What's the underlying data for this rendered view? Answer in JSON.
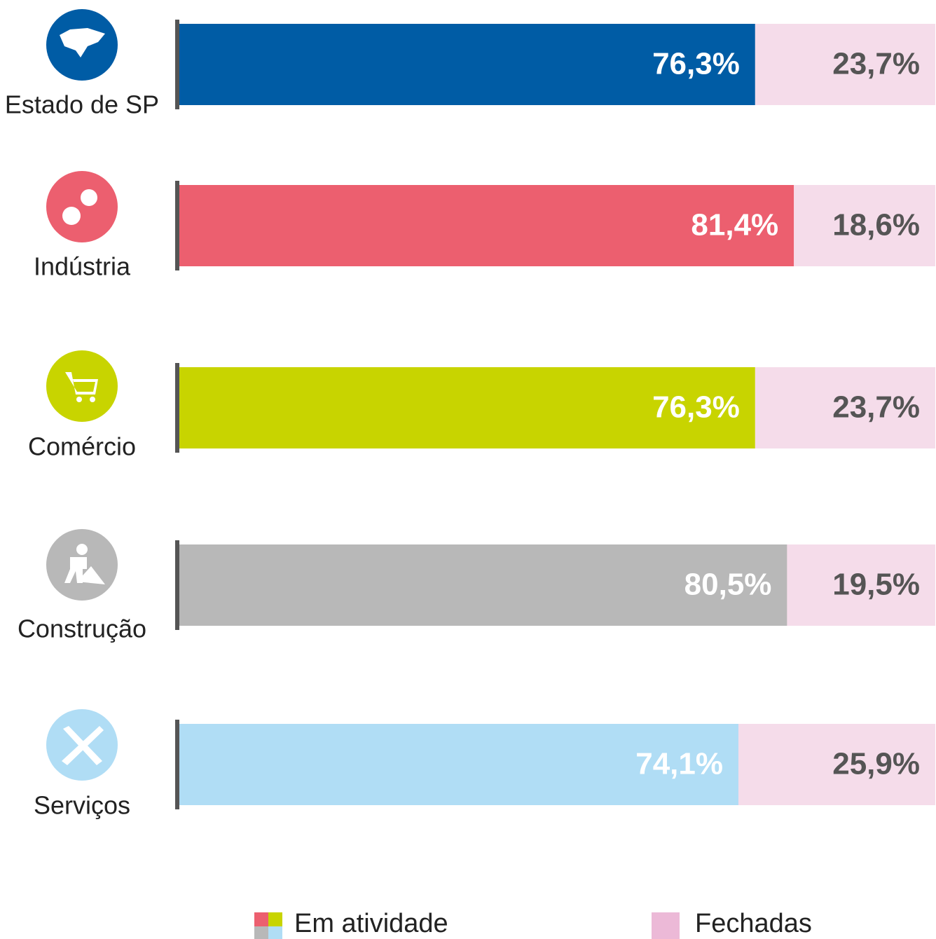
{
  "chart_data": {
    "type": "stacked-hbar",
    "categories": [
      "Estado de SP",
      "Indústria",
      "Comércio",
      "Construção",
      "Serviços"
    ],
    "series": [
      {
        "name": "Em atividade",
        "colors": [
          "#005ca5",
          "#ec5f6f",
          "#c8d400",
          "#b8b8b8",
          "#b0ddf5"
        ],
        "values": [
          76.3,
          81.4,
          76.3,
          80.5,
          74.1
        ],
        "value_labels": [
          "76,3%",
          "81,4%",
          "76,3%",
          "80,5%",
          "74,1%"
        ]
      },
      {
        "name": "Fechadas",
        "color": "#f5dcea",
        "legend_color": "#ecb9d7",
        "values": [
          23.7,
          18.6,
          23.7,
          19.5,
          25.9
        ],
        "value_labels": [
          "23,7%",
          "18,6%",
          "23,7%",
          "19,5%",
          "25,9%"
        ]
      }
    ],
    "xlim": [
      0,
      100
    ]
  }
}
